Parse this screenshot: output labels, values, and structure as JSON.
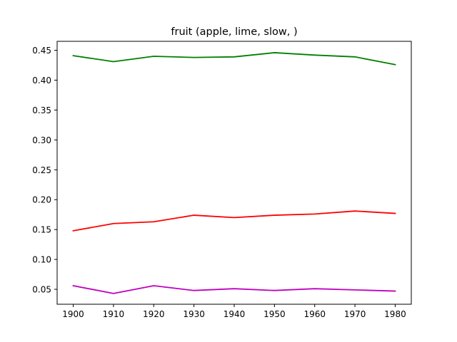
{
  "chart_data": {
    "type": "line",
    "title": "fruit (apple, lime, slow, )",
    "xlabel": "",
    "ylabel": "",
    "x": [
      1900,
      1910,
      1920,
      1930,
      1940,
      1950,
      1960,
      1970,
      1980
    ],
    "xlim": [
      1896,
      1984
    ],
    "ylim": [
      0.025,
      0.465
    ],
    "xticks": [
      "1900",
      "1910",
      "1920",
      "1930",
      "1940",
      "1950",
      "1960",
      "1970",
      "1980"
    ],
    "yticks": [
      "0.05",
      "0.10",
      "0.15",
      "0.20",
      "0.25",
      "0.30",
      "0.35",
      "0.40",
      "0.45"
    ],
    "grid": false,
    "series": [
      {
        "color": "#008000",
        "values": [
          0.441,
          0.431,
          0.44,
          0.438,
          0.439,
          0.446,
          0.442,
          0.439,
          0.426
        ]
      },
      {
        "color": "#ff0000",
        "values": [
          0.148,
          0.16,
          0.163,
          0.174,
          0.17,
          0.174,
          0.176,
          0.181,
          0.177
        ]
      },
      {
        "color": "#bf00bf",
        "values": [
          0.056,
          0.043,
          0.056,
          0.048,
          0.051,
          0.048,
          0.051,
          0.049,
          0.047
        ]
      }
    ]
  }
}
